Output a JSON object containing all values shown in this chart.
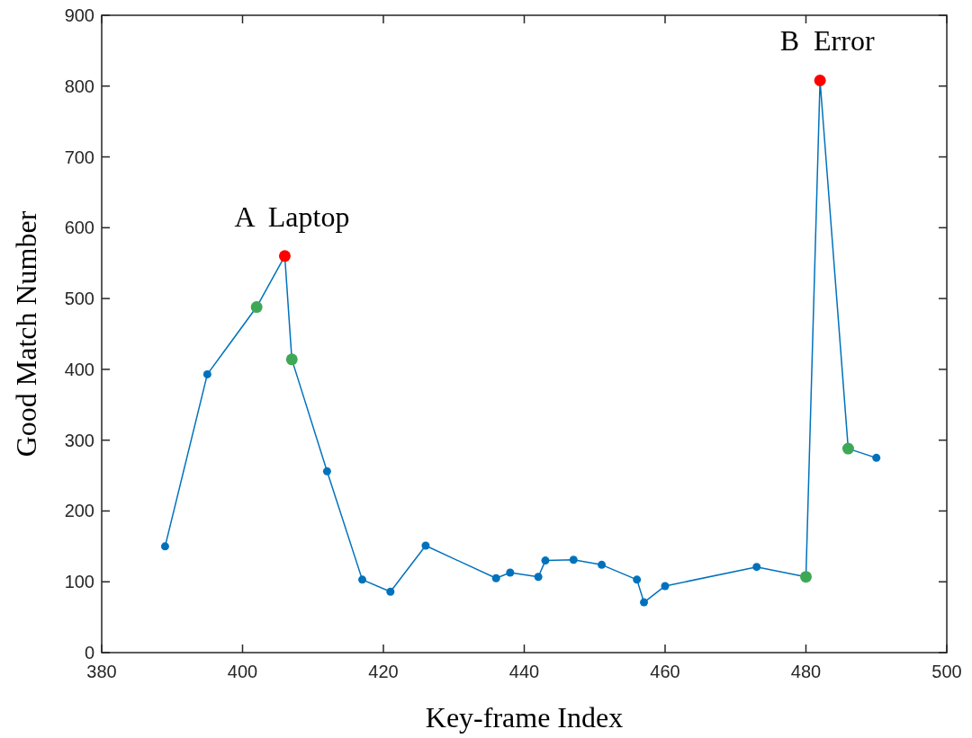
{
  "chart_data": {
    "type": "line",
    "xlabel": "Key-frame Index",
    "ylabel": "Good Match Number",
    "xlim": [
      380,
      500
    ],
    "xticks": [
      380,
      400,
      420,
      440,
      460,
      480,
      500
    ],
    "ylim": [
      0,
      900
    ],
    "yticks": [
      0,
      100,
      200,
      300,
      400,
      500,
      600,
      700,
      800,
      900
    ],
    "grid": false,
    "marker": "circle",
    "line_style": "solid",
    "series": [
      {
        "type": "line",
        "color": "#0072bd",
        "x": [
          389,
          395,
          402,
          406,
          407,
          412,
          417,
          421,
          426,
          436,
          438,
          442,
          443,
          447,
          451,
          456,
          457,
          460,
          473,
          480,
          482,
          486,
          490
        ],
        "values": [
          150,
          393,
          488,
          560,
          414,
          256,
          103,
          86,
          151,
          105,
          113,
          107,
          130,
          131,
          124,
          103,
          71,
          94,
          121,
          107,
          808,
          288,
          275
        ]
      },
      {
        "type": "scatter",
        "color": "#3ea856",
        "x": [
          402,
          407,
          480,
          486
        ],
        "values": [
          488,
          414,
          107,
          288
        ]
      },
      {
        "type": "scatter",
        "color": "#ff0000",
        "x": [
          406,
          482
        ],
        "values": [
          560,
          808
        ]
      }
    ],
    "annotations": [
      {
        "text": "A  Laptop",
        "x": 406,
        "y": 560
      },
      {
        "text": "B  Error",
        "x": 482,
        "y": 808
      }
    ]
  }
}
